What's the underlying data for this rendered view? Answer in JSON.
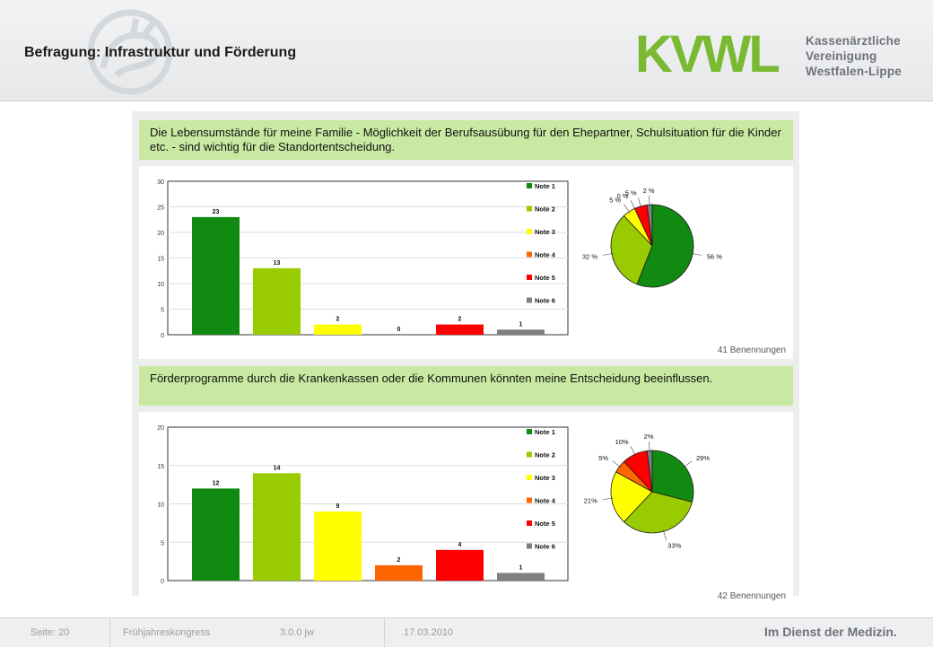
{
  "header": {
    "title": "Befragung: Infrastruktur und Förderung",
    "logo_mark": "KVWL",
    "logo_lines": [
      "Kassenärztliche",
      "Vereinigung",
      "Westfalen-Lippe"
    ],
    "brand_green": "#7ab932",
    "brand_gray": "#6f7378"
  },
  "chart_data": [
    {
      "type": "bar",
      "title": "Die Lebensumstände für meine Familie - Möglichkeit der Berufsausübung für den Ehepartner, Schulsituation für die Kinder etc. - sind wichtig für die Standortentscheidung.",
      "categories": [
        "Note 1",
        "Note 2",
        "Note 3",
        "Note 4",
        "Note 5",
        "Note 6"
      ],
      "values": [
        23,
        13,
        2,
        0,
        2,
        1
      ],
      "ylim": [
        0,
        30
      ],
      "yticks": [
        0,
        5,
        10,
        15,
        20,
        25,
        30
      ],
      "colors": [
        "#118a11",
        "#99cc00",
        "#ffff00",
        "#ff6600",
        "#ff0000",
        "#808080"
      ],
      "legend": "right",
      "pie": {
        "values": [
          56,
          32,
          5,
          0,
          5,
          2
        ],
        "labels": [
          "56 %",
          "32 %",
          "5 %",
          "0 %",
          "5 %",
          "2 %"
        ]
      },
      "count_label": "41 Benennungen"
    },
    {
      "type": "bar",
      "title": "Förderprogramme durch die Krankenkassen oder die Kommunen könnten meine Entscheidung beeinflussen.",
      "categories": [
        "Note 1",
        "Note 2",
        "Note 3",
        "Note 4",
        "Note 5",
        "Note 6"
      ],
      "values": [
        12,
        14,
        9,
        2,
        4,
        1
      ],
      "ylim": [
        0,
        20
      ],
      "yticks": [
        0,
        5,
        10,
        15,
        20
      ],
      "colors": [
        "#118a11",
        "#99cc00",
        "#ffff00",
        "#ff6600",
        "#ff0000",
        "#808080"
      ],
      "legend": "right",
      "pie": {
        "values": [
          29,
          33,
          21,
          5,
          10,
          2
        ],
        "labels": [
          "29%",
          "33%",
          "21%",
          "5%",
          "10%",
          "2%"
        ]
      },
      "count_label": "42 Benennungen"
    }
  ],
  "footer": {
    "page": "Seite: 20",
    "event": "Frühjahreskongress",
    "version": "3.0.0 jw",
    "date": "17.03.2010",
    "slogan": "Im Dienst der Medizin."
  }
}
